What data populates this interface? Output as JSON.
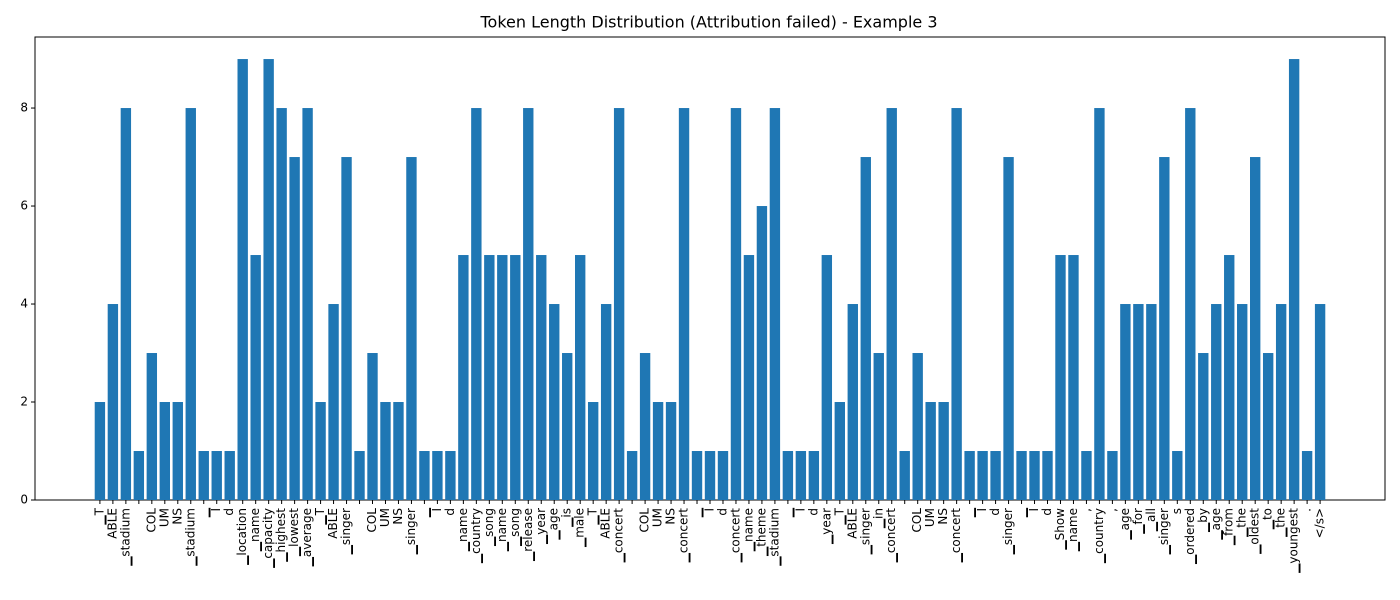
{
  "chart_data": {
    "type": "bar",
    "title": "Token Length Distribution (Attribution failed) - Example 3",
    "categories": [
      "▁T",
      "ABLE",
      "▁stadium",
      null,
      "COL",
      "UM",
      "NS",
      "▁stadium",
      "▁",
      "I",
      "d",
      "▁location",
      "▁name",
      "▁capacity",
      "▁highest",
      "▁lowest",
      "▁average",
      "▁T",
      "ABLE",
      "▁singer",
      null,
      "COL",
      "UM",
      "NS",
      "▁singer",
      "▁",
      "I",
      "d",
      "▁name",
      "▁country",
      "▁song",
      "▁name",
      "▁song",
      "▁release",
      "▁year",
      "▁age",
      "▁is",
      "▁male",
      "▁T",
      "ABLE",
      "▁concert",
      null,
      "COL",
      "UM",
      "NS",
      "▁concert",
      "▁",
      "I",
      "d",
      "▁concert",
      "▁name",
      "▁theme",
      "▁stadium",
      "▁",
      "I",
      "d",
      "▁year",
      "▁T",
      "ABLE",
      "▁singer",
      "▁in",
      "▁concert",
      null,
      "COL",
      "UM",
      "NS",
      "▁concert",
      "▁",
      "I",
      "d",
      "▁singer",
      "▁",
      "I",
      "d",
      "▁Show",
      "▁name",
      ",",
      "▁country",
      ",",
      "▁age",
      "▁for",
      "▁all",
      "▁singer",
      "s",
      "▁ordered",
      "▁by",
      "▁age",
      "▁from",
      "▁the",
      "▁oldest",
      "▁to",
      "▁the",
      "▁youngest",
      ".",
      "</s>"
    ],
    "values": [
      2,
      4,
      8,
      1,
      3,
      2,
      2,
      8,
      1,
      1,
      1,
      9,
      5,
      9,
      8,
      7,
      8,
      2,
      4,
      7,
      1,
      3,
      2,
      2,
      7,
      1,
      1,
      1,
      5,
      8,
      5,
      5,
      5,
      8,
      5,
      4,
      3,
      5,
      2,
      4,
      8,
      1,
      3,
      2,
      2,
      8,
      1,
      1,
      1,
      8,
      5,
      6,
      8,
      1,
      1,
      1,
      5,
      2,
      4,
      7,
      3,
      8,
      1,
      3,
      2,
      2,
      8,
      1,
      1,
      1,
      7,
      1,
      1,
      1,
      5,
      5,
      1,
      8,
      1,
      4,
      4,
      4,
      7,
      1,
      8,
      3,
      4,
      5,
      4,
      7,
      3,
      4,
      9,
      1,
      4
    ],
    "color": "#1f77b4",
    "ylim": [
      0,
      9.45
    ],
    "yticks": [
      0,
      2,
      4,
      6,
      8
    ]
  }
}
